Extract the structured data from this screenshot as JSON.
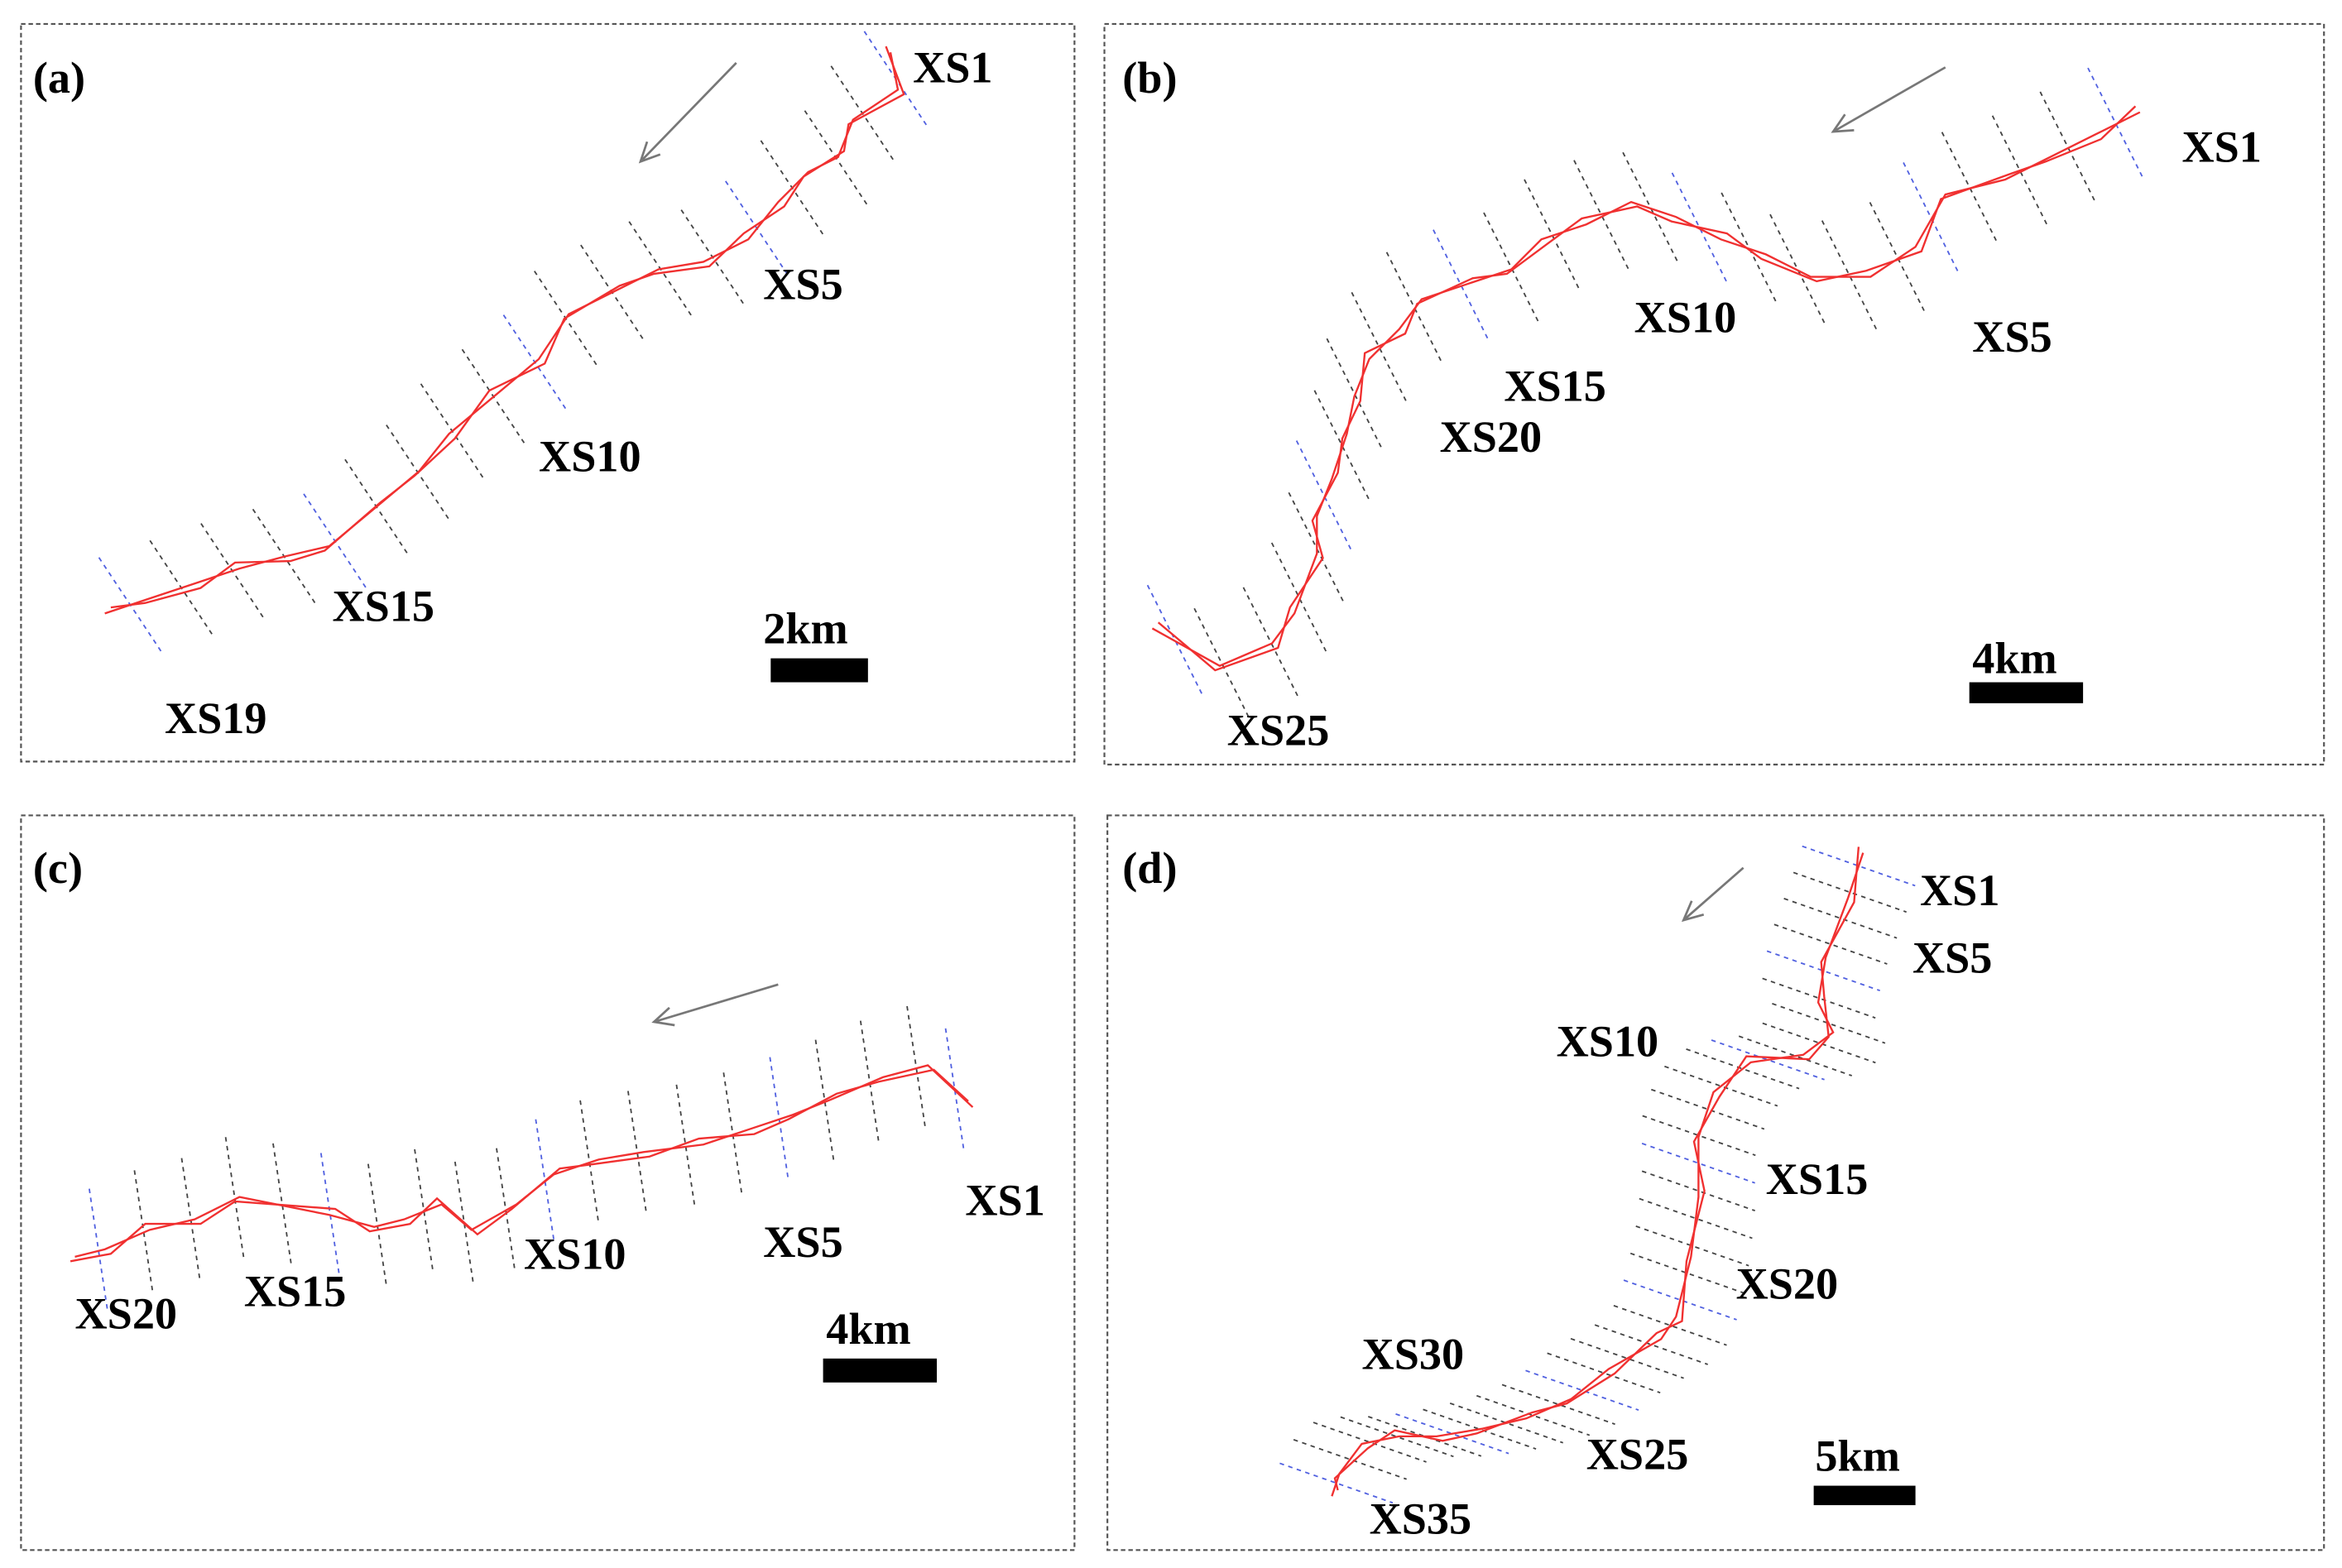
{
  "panels": [
    {
      "label": "(a)",
      "sections": [
        "XS1",
        "XS5",
        "XS10",
        "XS15",
        "XS19"
      ],
      "scale_bar": "2km"
    },
    {
      "label": "(b)",
      "sections": [
        "XS1",
        "XS5",
        "XS10",
        "XS15",
        "XS20",
        "XS25"
      ],
      "scale_bar": "4km"
    },
    {
      "label": "(c)",
      "sections": [
        "XS1",
        "XS5",
        "XS10",
        "XS15",
        "XS20"
      ],
      "scale_bar": "4km"
    },
    {
      "label": "(d)",
      "sections": [
        "XS1",
        "XS5",
        "XS10",
        "XS15",
        "XS20",
        "XS25",
        "XS30",
        "XS35"
      ],
      "scale_bar": "5km"
    }
  ]
}
